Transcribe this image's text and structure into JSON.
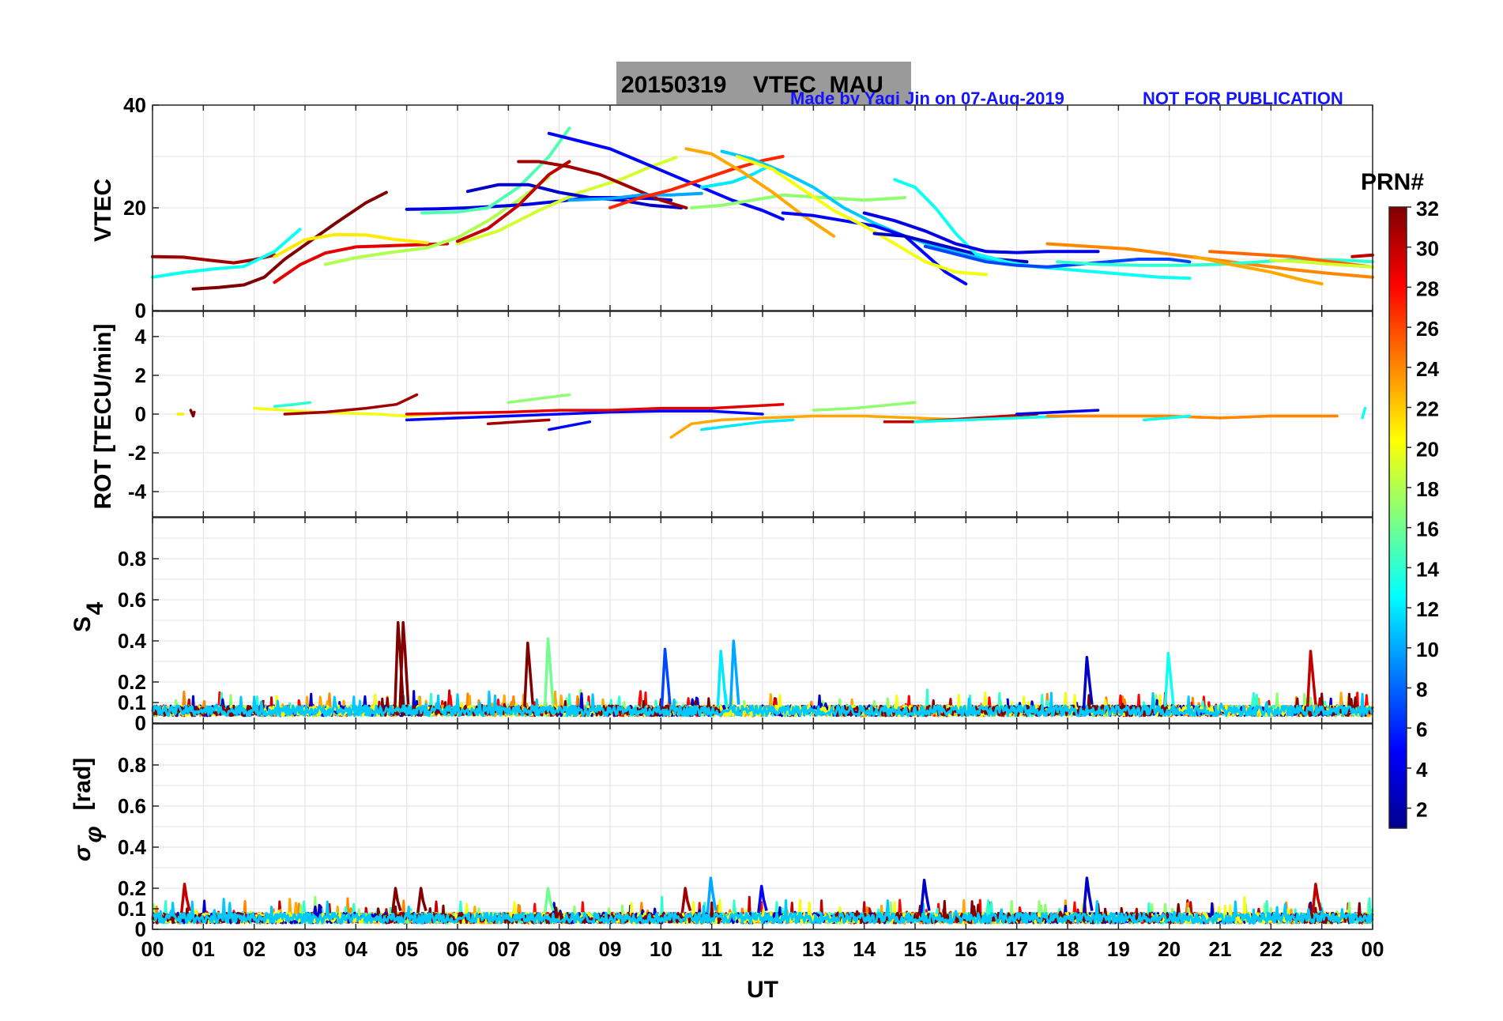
{
  "header": {
    "title": "20150319    VTEC  MAU",
    "credit": "Made by Yaqi Jin on 07-Aug-2019",
    "notice": "NOT FOR PUBLICATION",
    "title_bg": "#9a9a9a",
    "credit_color": "#1414ff"
  },
  "chart_data": [
    {
      "type": "line",
      "panel": "vtec",
      "ylabel": "VTEC",
      "ylim": [
        0,
        40
      ],
      "yticks": [
        0,
        20,
        40
      ],
      "xlim": [
        0,
        24
      ],
      "grid": true,
      "series": [
        {
          "prn": 31,
          "x": [
            0.0,
            0.6,
            1.2,
            1.6,
            2.0,
            2.4
          ],
          "y": [
            10.5,
            10.4,
            9.7,
            9.3,
            9.9,
            10.8
          ]
        },
        {
          "prn": 13,
          "x": [
            0.0,
            0.6,
            1.2,
            1.8,
            2.4,
            2.9
          ],
          "y": [
            6.5,
            7.4,
            8.1,
            8.6,
            11.5,
            15.8
          ]
        },
        {
          "prn": 32,
          "x": [
            0.8,
            1.3,
            1.8,
            2.2,
            2.6,
            3.1,
            3.6,
            4.2,
            4.6
          ],
          "y": [
            4.2,
            4.5,
            5.0,
            6.5,
            10.0,
            13.5,
            17.0,
            21.0,
            23.0
          ]
        },
        {
          "prn": 29,
          "x": [
            2.4,
            2.9,
            3.4,
            4.0,
            4.6,
            5.2,
            5.8
          ],
          "y": [
            5.5,
            8.9,
            11.2,
            12.4,
            12.6,
            12.8,
            13.0
          ]
        },
        {
          "prn": 21,
          "x": [
            2.4,
            3.0,
            3.6,
            4.2,
            4.8,
            5.4
          ],
          "y": [
            10.5,
            13.8,
            14.8,
            14.7,
            13.8,
            13.2
          ]
        },
        {
          "prn": 18,
          "x": [
            3.4,
            4.0,
            4.6,
            5.4,
            6.0,
            6.6,
            7.2,
            7.8
          ],
          "y": [
            9.0,
            10.3,
            11.2,
            12.2,
            14.2,
            17.5,
            21.5,
            26.0
          ]
        },
        {
          "prn": 4,
          "x": [
            5.0,
            5.6,
            6.2,
            6.8,
            7.4,
            8.0,
            8.6,
            9.2,
            9.8,
            10.2
          ],
          "y": [
            19.7,
            19.8,
            20.0,
            20.3,
            20.7,
            21.3,
            22.0,
            22.0,
            21.8,
            21.5
          ]
        },
        {
          "prn": 15,
          "x": [
            5.3,
            6.0,
            6.6,
            7.2,
            7.8,
            8.2
          ],
          "y": [
            19.0,
            19.2,
            20.0,
            24.0,
            30.0,
            35.5
          ]
        },
        {
          "prn": 19,
          "x": [
            6.0,
            6.8,
            7.6,
            8.4,
            9.2,
            9.8,
            10.3
          ],
          "y": [
            13.0,
            15.5,
            19.5,
            23.0,
            25.5,
            28.0,
            29.8
          ]
        },
        {
          "prn": 3,
          "x": [
            6.2,
            6.8,
            7.4,
            8.0,
            8.6,
            9.2,
            9.8,
            10.4
          ],
          "y": [
            23.2,
            24.5,
            24.5,
            23.0,
            22.0,
            21.5,
            20.5,
            20.0
          ]
        },
        {
          "prn": 30,
          "x": [
            6.0,
            6.6,
            7.2,
            7.8,
            8.2
          ],
          "y": [
            13.5,
            16.0,
            20.5,
            26.5,
            29.0
          ]
        },
        {
          "prn": 31,
          "x": [
            7.2,
            7.6,
            8.2,
            8.8,
            9.4,
            10.0,
            10.5
          ],
          "y": [
            29.0,
            29.0,
            28.0,
            26.5,
            24.0,
            21.5,
            20.0
          ]
        },
        {
          "prn": 5,
          "x": [
            7.8,
            8.4,
            9.0,
            9.6,
            10.2,
            10.8,
            11.4,
            12.0,
            12.4
          ],
          "y": [
            34.5,
            33.0,
            31.5,
            29.0,
            26.5,
            24.0,
            21.5,
            19.5,
            17.8
          ]
        },
        {
          "prn": 10,
          "x": [
            8.2,
            9.0,
            9.6,
            10.2,
            10.8
          ],
          "y": [
            21.5,
            21.8,
            22.5,
            22.5,
            22.8
          ]
        },
        {
          "prn": 27,
          "x": [
            9.0,
            9.6,
            10.2,
            10.8,
            11.4,
            12.0,
            12.4
          ],
          "y": [
            20.0,
            22.0,
            23.5,
            25.5,
            27.5,
            29.2,
            30.0
          ]
        },
        {
          "prn": 17,
          "x": [
            10.6,
            11.2,
            11.8,
            12.4,
            13.2,
            14.0,
            14.8
          ],
          "y": [
            20.0,
            20.5,
            21.5,
            22.5,
            22.0,
            21.5,
            22.0
          ]
        },
        {
          "prn": 12,
          "x": [
            10.8,
            11.4,
            11.8,
            12.1
          ],
          "y": [
            24.0,
            25.0,
            26.5,
            28.0
          ]
        },
        {
          "prn": 23,
          "x": [
            10.5,
            11.0,
            11.6,
            12.2,
            12.8,
            13.4
          ],
          "y": [
            31.5,
            30.5,
            27.0,
            23.0,
            18.5,
            14.5
          ]
        },
        {
          "prn": 11,
          "x": [
            11.2,
            11.8,
            12.4,
            13.0,
            13.6,
            14.2,
            14.8,
            15.4,
            16.0,
            16.6
          ],
          "y": [
            31.0,
            29.5,
            27.0,
            24.0,
            20.0,
            17.0,
            14.5,
            12.5,
            10.8,
            9.5
          ]
        },
        {
          "prn": 5,
          "x": [
            12.4,
            13.0,
            13.6,
            14.2,
            14.8,
            15.2,
            15.6,
            16.0
          ],
          "y": [
            19.0,
            18.5,
            17.5,
            16.5,
            14.5,
            11.0,
            7.5,
            5.2
          ]
        },
        {
          "prn": 20,
          "x": [
            11.5,
            12.2,
            12.8,
            13.4,
            14.0,
            14.6,
            15.2,
            15.8,
            16.4
          ],
          "y": [
            30.0,
            27.5,
            23.5,
            19.5,
            16.5,
            13.0,
            9.5,
            7.5,
            7.0
          ]
        },
        {
          "prn": 3,
          "x": [
            14.2,
            14.8,
            15.4,
            16.0,
            16.6,
            17.2
          ],
          "y": [
            15.0,
            14.5,
            13.0,
            11.5,
            10.0,
            9.5
          ]
        },
        {
          "prn": 13,
          "x": [
            14.6,
            15.0,
            15.4,
            15.8,
            16.2,
            16.8,
            17.4,
            18.0,
            18.6,
            19.2,
            19.8,
            20.4
          ],
          "y": [
            25.5,
            24.0,
            20.0,
            15.0,
            11.0,
            9.5,
            8.5,
            8.0,
            7.5,
            7.0,
            6.5,
            6.3
          ]
        },
        {
          "prn": 4,
          "x": [
            14.0,
            14.6,
            15.2,
            15.8,
            16.4,
            17.0,
            17.6,
            18.2,
            18.6
          ],
          "y": [
            19.0,
            17.5,
            15.5,
            13.0,
            11.5,
            11.3,
            11.5,
            11.5,
            11.5
          ]
        },
        {
          "prn": 7,
          "x": [
            15.2,
            15.8,
            16.4,
            17.0,
            17.6,
            18.2,
            18.8,
            19.4,
            20.0,
            20.4
          ],
          "y": [
            12.5,
            11.0,
            9.5,
            8.8,
            8.5,
            9.0,
            9.5,
            10.0,
            10.0,
            9.5
          ]
        },
        {
          "prn": 24,
          "x": [
            17.6,
            18.4,
            19.2,
            20.0,
            20.8,
            21.6,
            22.4,
            23.2,
            24.0
          ],
          "y": [
            13.0,
            12.5,
            12.0,
            11.0,
            10.0,
            9.0,
            8.0,
            7.2,
            6.5
          ]
        },
        {
          "prn": 14,
          "x": [
            17.8,
            18.6,
            19.4,
            20.2,
            21.0,
            21.8,
            22.6,
            23.4,
            24.0
          ],
          "y": [
            9.5,
            9.0,
            8.8,
            8.8,
            9.0,
            9.5,
            10.0,
            9.8,
            9.5
          ]
        },
        {
          "prn": 25,
          "x": [
            20.8,
            21.6,
            22.4,
            23.2,
            24.0
          ],
          "y": [
            11.5,
            11.0,
            10.5,
            9.5,
            8.5
          ]
        },
        {
          "prn": 23,
          "x": [
            20.5,
            21.2,
            22.0,
            22.6,
            23.0
          ],
          "y": [
            10.5,
            9.0,
            7.5,
            6.0,
            5.2
          ]
        },
        {
          "prn": 19,
          "x": [
            22.0,
            22.6,
            23.2,
            24.0
          ],
          "y": [
            9.8,
            9.5,
            9.0,
            8.5
          ]
        },
        {
          "prn": 30,
          "x": [
            23.6,
            24.0
          ],
          "y": [
            10.5,
            10.8
          ]
        }
      ]
    },
    {
      "type": "line",
      "panel": "rot",
      "ylabel": "ROT [TECU/min]",
      "ylim": [
        -5.3,
        5.3
      ],
      "yticks": [
        -4,
        -2,
        0,
        2,
        4
      ],
      "xlim": [
        0,
        24
      ],
      "grid": true,
      "series": [
        {
          "prn": 21,
          "x": [
            0.5,
            0.6
          ],
          "y": [
            0.0,
            0.0
          ]
        },
        {
          "prn": 32,
          "x": [
            0.75,
            0.8,
            0.82
          ],
          "y": [
            0.2,
            -0.1,
            0.1
          ]
        },
        {
          "prn": 20,
          "x": [
            2.0,
            2.6,
            3.2,
            3.8,
            4.4,
            5.0,
            5.6
          ],
          "y": [
            0.3,
            0.2,
            0.1,
            0.05,
            0.0,
            -0.1,
            0.0
          ]
        },
        {
          "prn": 14,
          "x": [
            2.4,
            2.8,
            3.1
          ],
          "y": [
            0.4,
            0.5,
            0.6
          ]
        },
        {
          "prn": 31,
          "x": [
            2.6,
            3.4,
            4.2,
            4.8,
            5.2
          ],
          "y": [
            0.0,
            0.1,
            0.3,
            0.5,
            1.0
          ]
        },
        {
          "prn": 5,
          "x": [
            5.0,
            6.0,
            7.0,
            8.0,
            9.0,
            10.0,
            11.0,
            12.0
          ],
          "y": [
            -0.3,
            -0.2,
            -0.1,
            0.0,
            0.1,
            0.15,
            0.15,
            0.0
          ]
        },
        {
          "prn": 29,
          "x": [
            5.0,
            6.0,
            7.0,
            8.0,
            9.0,
            10.0,
            11.0,
            12.4
          ],
          "y": [
            0.0,
            0.05,
            0.1,
            0.2,
            0.2,
            0.3,
            0.3,
            0.5
          ]
        },
        {
          "prn": 31,
          "x": [
            6.6,
            7.2,
            7.8
          ],
          "y": [
            -0.5,
            -0.4,
            -0.3
          ]
        },
        {
          "prn": 17,
          "x": [
            7.0,
            7.6,
            8.2
          ],
          "y": [
            0.6,
            0.8,
            1.0
          ]
        },
        {
          "prn": 5,
          "x": [
            7.8,
            8.2,
            8.6
          ],
          "y": [
            -0.8,
            -0.6,
            -0.4
          ]
        },
        {
          "prn": 23,
          "x": [
            10.2,
            10.6,
            11.2,
            12.0,
            13.0,
            14.0,
            15.0,
            16.0,
            17.0,
            18.0,
            19.0,
            20.0,
            21.0,
            22.0,
            23.0,
            23.3
          ],
          "y": [
            -1.2,
            -0.5,
            -0.3,
            -0.2,
            -0.1,
            -0.1,
            -0.2,
            -0.3,
            -0.2,
            -0.1,
            -0.1,
            -0.1,
            -0.2,
            -0.1,
            -0.1,
            -0.1
          ]
        },
        {
          "prn": 12,
          "x": [
            10.8,
            11.4,
            12.0,
            12.6
          ],
          "y": [
            -0.8,
            -0.6,
            -0.4,
            -0.3
          ]
        },
        {
          "prn": 17,
          "x": [
            13.0,
            13.8,
            14.6,
            15.0
          ],
          "y": [
            0.2,
            0.3,
            0.5,
            0.6
          ]
        },
        {
          "prn": 30,
          "x": [
            14.4,
            15.0,
            15.6,
            16.2,
            16.8,
            17.4
          ],
          "y": [
            -0.4,
            -0.4,
            -0.3,
            -0.2,
            -0.1,
            0.0
          ]
        },
        {
          "prn": 13,
          "x": [
            15.0,
            16.0,
            17.0,
            18.0
          ],
          "y": [
            -0.4,
            -0.3,
            -0.2,
            -0.1
          ]
        },
        {
          "prn": 4,
          "x": [
            17.0,
            17.8,
            18.6
          ],
          "y": [
            0.0,
            0.1,
            0.2
          ]
        },
        {
          "prn": 24,
          "x": [
            17.6,
            19.0,
            20.0,
            21.0,
            22.0,
            23.0,
            23.3
          ],
          "y": [
            -0.1,
            -0.1,
            -0.1,
            -0.2,
            -0.1,
            -0.1,
            -0.1
          ]
        },
        {
          "prn": 13,
          "x": [
            19.5,
            20.0,
            20.4
          ],
          "y": [
            -0.3,
            -0.2,
            -0.1
          ]
        },
        {
          "prn": 13,
          "x": [
            23.8,
            23.85
          ],
          "y": [
            -0.2,
            0.3
          ]
        }
      ]
    },
    {
      "type": "line",
      "panel": "s4",
      "ylabel": "S4",
      "ylim": [
        0,
        1.0
      ],
      "yticks": [
        0,
        0.1,
        0.2,
        0.4,
        0.6,
        0.8
      ],
      "xlim": [
        0,
        24
      ],
      "grid": true,
      "peaks": [
        {
          "prn": 32,
          "x": 4.85,
          "y": 0.49
        },
        {
          "prn": 32,
          "x": 4.95,
          "y": 0.49
        },
        {
          "prn": 32,
          "x": 7.4,
          "y": 0.39
        },
        {
          "prn": 16,
          "x": 7.8,
          "y": 0.41
        },
        {
          "prn": 7,
          "x": 10.1,
          "y": 0.36
        },
        {
          "prn": 10,
          "x": 11.45,
          "y": 0.4
        },
        {
          "prn": 12,
          "x": 11.2,
          "y": 0.35
        },
        {
          "prn": 3,
          "x": 18.4,
          "y": 0.32
        },
        {
          "prn": 13,
          "x": 20.0,
          "y": 0.34
        },
        {
          "prn": 30,
          "x": 22.8,
          "y": 0.35
        }
      ]
    },
    {
      "type": "line",
      "panel": "sigma_phi",
      "ylabel": "σ φ [rad]",
      "ylim": [
        0,
        1.0
      ],
      "yticks": [
        0,
        0.1,
        0.2,
        0.4,
        0.6,
        0.8
      ],
      "xlim": [
        0,
        24
      ],
      "grid": true,
      "peaks": [
        {
          "prn": 30,
          "x": 0.65,
          "y": 0.22
        },
        {
          "prn": 32,
          "x": 4.8,
          "y": 0.2
        },
        {
          "prn": 32,
          "x": 5.3,
          "y": 0.2
        },
        {
          "prn": 16,
          "x": 7.8,
          "y": 0.2
        },
        {
          "prn": 31,
          "x": 10.5,
          "y": 0.2
        },
        {
          "prn": 10,
          "x": 11.0,
          "y": 0.25
        },
        {
          "prn": 5,
          "x": 12.0,
          "y": 0.21
        },
        {
          "prn": 3,
          "x": 15.2,
          "y": 0.24
        },
        {
          "prn": 3,
          "x": 18.4,
          "y": 0.25
        },
        {
          "prn": 30,
          "x": 22.9,
          "y": 0.22
        }
      ]
    }
  ],
  "x_axis": {
    "label": "UT",
    "ticks": [
      "00",
      "01",
      "02",
      "03",
      "04",
      "05",
      "06",
      "07",
      "08",
      "09",
      "10",
      "11",
      "12",
      "13",
      "14",
      "15",
      "16",
      "17",
      "18",
      "19",
      "20",
      "21",
      "22",
      "23",
      "00"
    ]
  },
  "colorbar": {
    "title": "PRN#",
    "min": 1,
    "max": 32,
    "ticks": [
      "32",
      "30",
      "28",
      "26",
      "24",
      "22",
      "20",
      "18",
      "16",
      "14",
      "12",
      "10",
      "8",
      "6",
      "4",
      "2"
    ],
    "colormap": [
      "#00008f",
      "#0000ff",
      "#007fff",
      "#00ffff",
      "#7fff7f",
      "#ffff00",
      "#ff7f00",
      "#ff0000",
      "#800000"
    ]
  }
}
